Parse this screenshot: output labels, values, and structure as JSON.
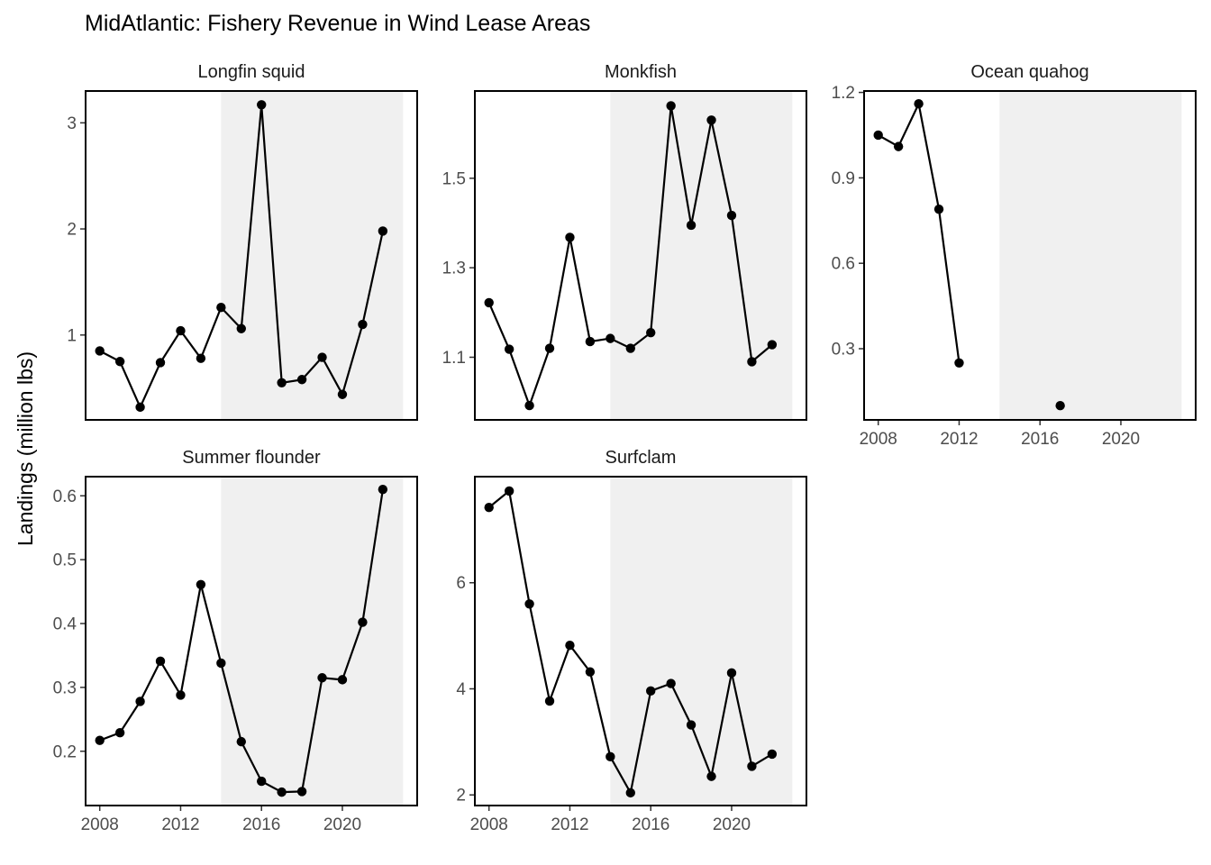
{
  "chart_data": {
    "type": "line",
    "title": "MidAtlantic: Fishery Revenue in Wind Lease Areas",
    "ylabel": "Landings (million lbs)",
    "xlabel": "",
    "shaded_interval": [
      2014,
      2023
    ],
    "x_ticks": [
      2008,
      2012,
      2016,
      2020
    ],
    "panels": [
      {
        "name": "Longfin squid",
        "x": [
          2008,
          2009,
          2010,
          2011,
          2012,
          2013,
          2014,
          2015,
          2016,
          2017,
          2018,
          2019,
          2020,
          2021,
          2022
        ],
        "values": [
          0.85,
          0.75,
          0.32,
          0.74,
          1.04,
          0.78,
          1.26,
          1.06,
          3.17,
          0.55,
          0.58,
          0.79,
          0.44,
          1.1,
          1.98
        ],
        "ylim": [
          0.2,
          3.3
        ],
        "yticks": [
          {
            "v": 1,
            "label": "1"
          },
          {
            "v": 2,
            "label": "2"
          },
          {
            "v": 3,
            "label": "3"
          }
        ],
        "show_x_axis": false
      },
      {
        "name": "Monkfish",
        "x": [
          2008,
          2009,
          2010,
          2011,
          2012,
          2013,
          2014,
          2015,
          2016,
          2017,
          2018,
          2019,
          2020,
          2021,
          2022
        ],
        "values": [
          1.222,
          1.118,
          0.992,
          1.12,
          1.368,
          1.135,
          1.142,
          1.12,
          1.155,
          1.662,
          1.395,
          1.63,
          1.417,
          1.09,
          1.128
        ],
        "ylim": [
          0.96,
          1.695
        ],
        "yticks": [
          {
            "v": 1.1,
            "label": "1.1"
          },
          {
            "v": 1.3,
            "label": "1.3"
          },
          {
            "v": 1.5,
            "label": "1.5"
          }
        ],
        "show_x_axis": false
      },
      {
        "name": "Ocean quahog",
        "x": [
          2008,
          2009,
          2010,
          2011,
          2012,
          2017
        ],
        "values": [
          1.05,
          1.01,
          1.16,
          0.79,
          0.25,
          0.1
        ],
        "connected": [
          true,
          true,
          true,
          true,
          true,
          false
        ],
        "ylim": [
          0.05,
          1.205
        ],
        "yticks": [
          {
            "v": 0.3,
            "label": "0.3"
          },
          {
            "v": 0.6,
            "label": "0.6"
          },
          {
            "v": 0.9,
            "label": "0.9"
          },
          {
            "v": 1.2,
            "label": "1.2"
          }
        ],
        "show_x_axis": true
      },
      {
        "name": "Summer flounder",
        "x": [
          2008,
          2009,
          2010,
          2011,
          2012,
          2013,
          2014,
          2015,
          2016,
          2017,
          2018,
          2019,
          2020,
          2021,
          2022
        ],
        "values": [
          0.217,
          0.229,
          0.278,
          0.341,
          0.288,
          0.461,
          0.338,
          0.215,
          0.153,
          0.136,
          0.137,
          0.315,
          0.312,
          0.402,
          0.61
        ],
        "ylim": [
          0.115,
          0.63
        ],
        "yticks": [
          {
            "v": 0.2,
            "label": "0.2"
          },
          {
            "v": 0.3,
            "label": "0.3"
          },
          {
            "v": 0.4,
            "label": "0.4"
          },
          {
            "v": 0.5,
            "label": "0.5"
          },
          {
            "v": 0.6,
            "label": "0.6"
          }
        ],
        "show_x_axis": true
      },
      {
        "name": "Surfclam",
        "x": [
          2008,
          2009,
          2010,
          2011,
          2012,
          2013,
          2014,
          2015,
          2016,
          2017,
          2018,
          2019,
          2020,
          2021,
          2022
        ],
        "values": [
          7.42,
          7.73,
          5.6,
          3.77,
          4.82,
          4.32,
          2.72,
          2.04,
          3.96,
          4.1,
          3.32,
          2.35,
          4.3,
          2.54,
          2.77
        ],
        "ylim": [
          1.8,
          8.0
        ],
        "yticks": [
          {
            "v": 2,
            "label": "2"
          },
          {
            "v": 4,
            "label": "4"
          },
          {
            "v": 6,
            "label": "6"
          }
        ],
        "show_x_axis": true
      }
    ]
  }
}
